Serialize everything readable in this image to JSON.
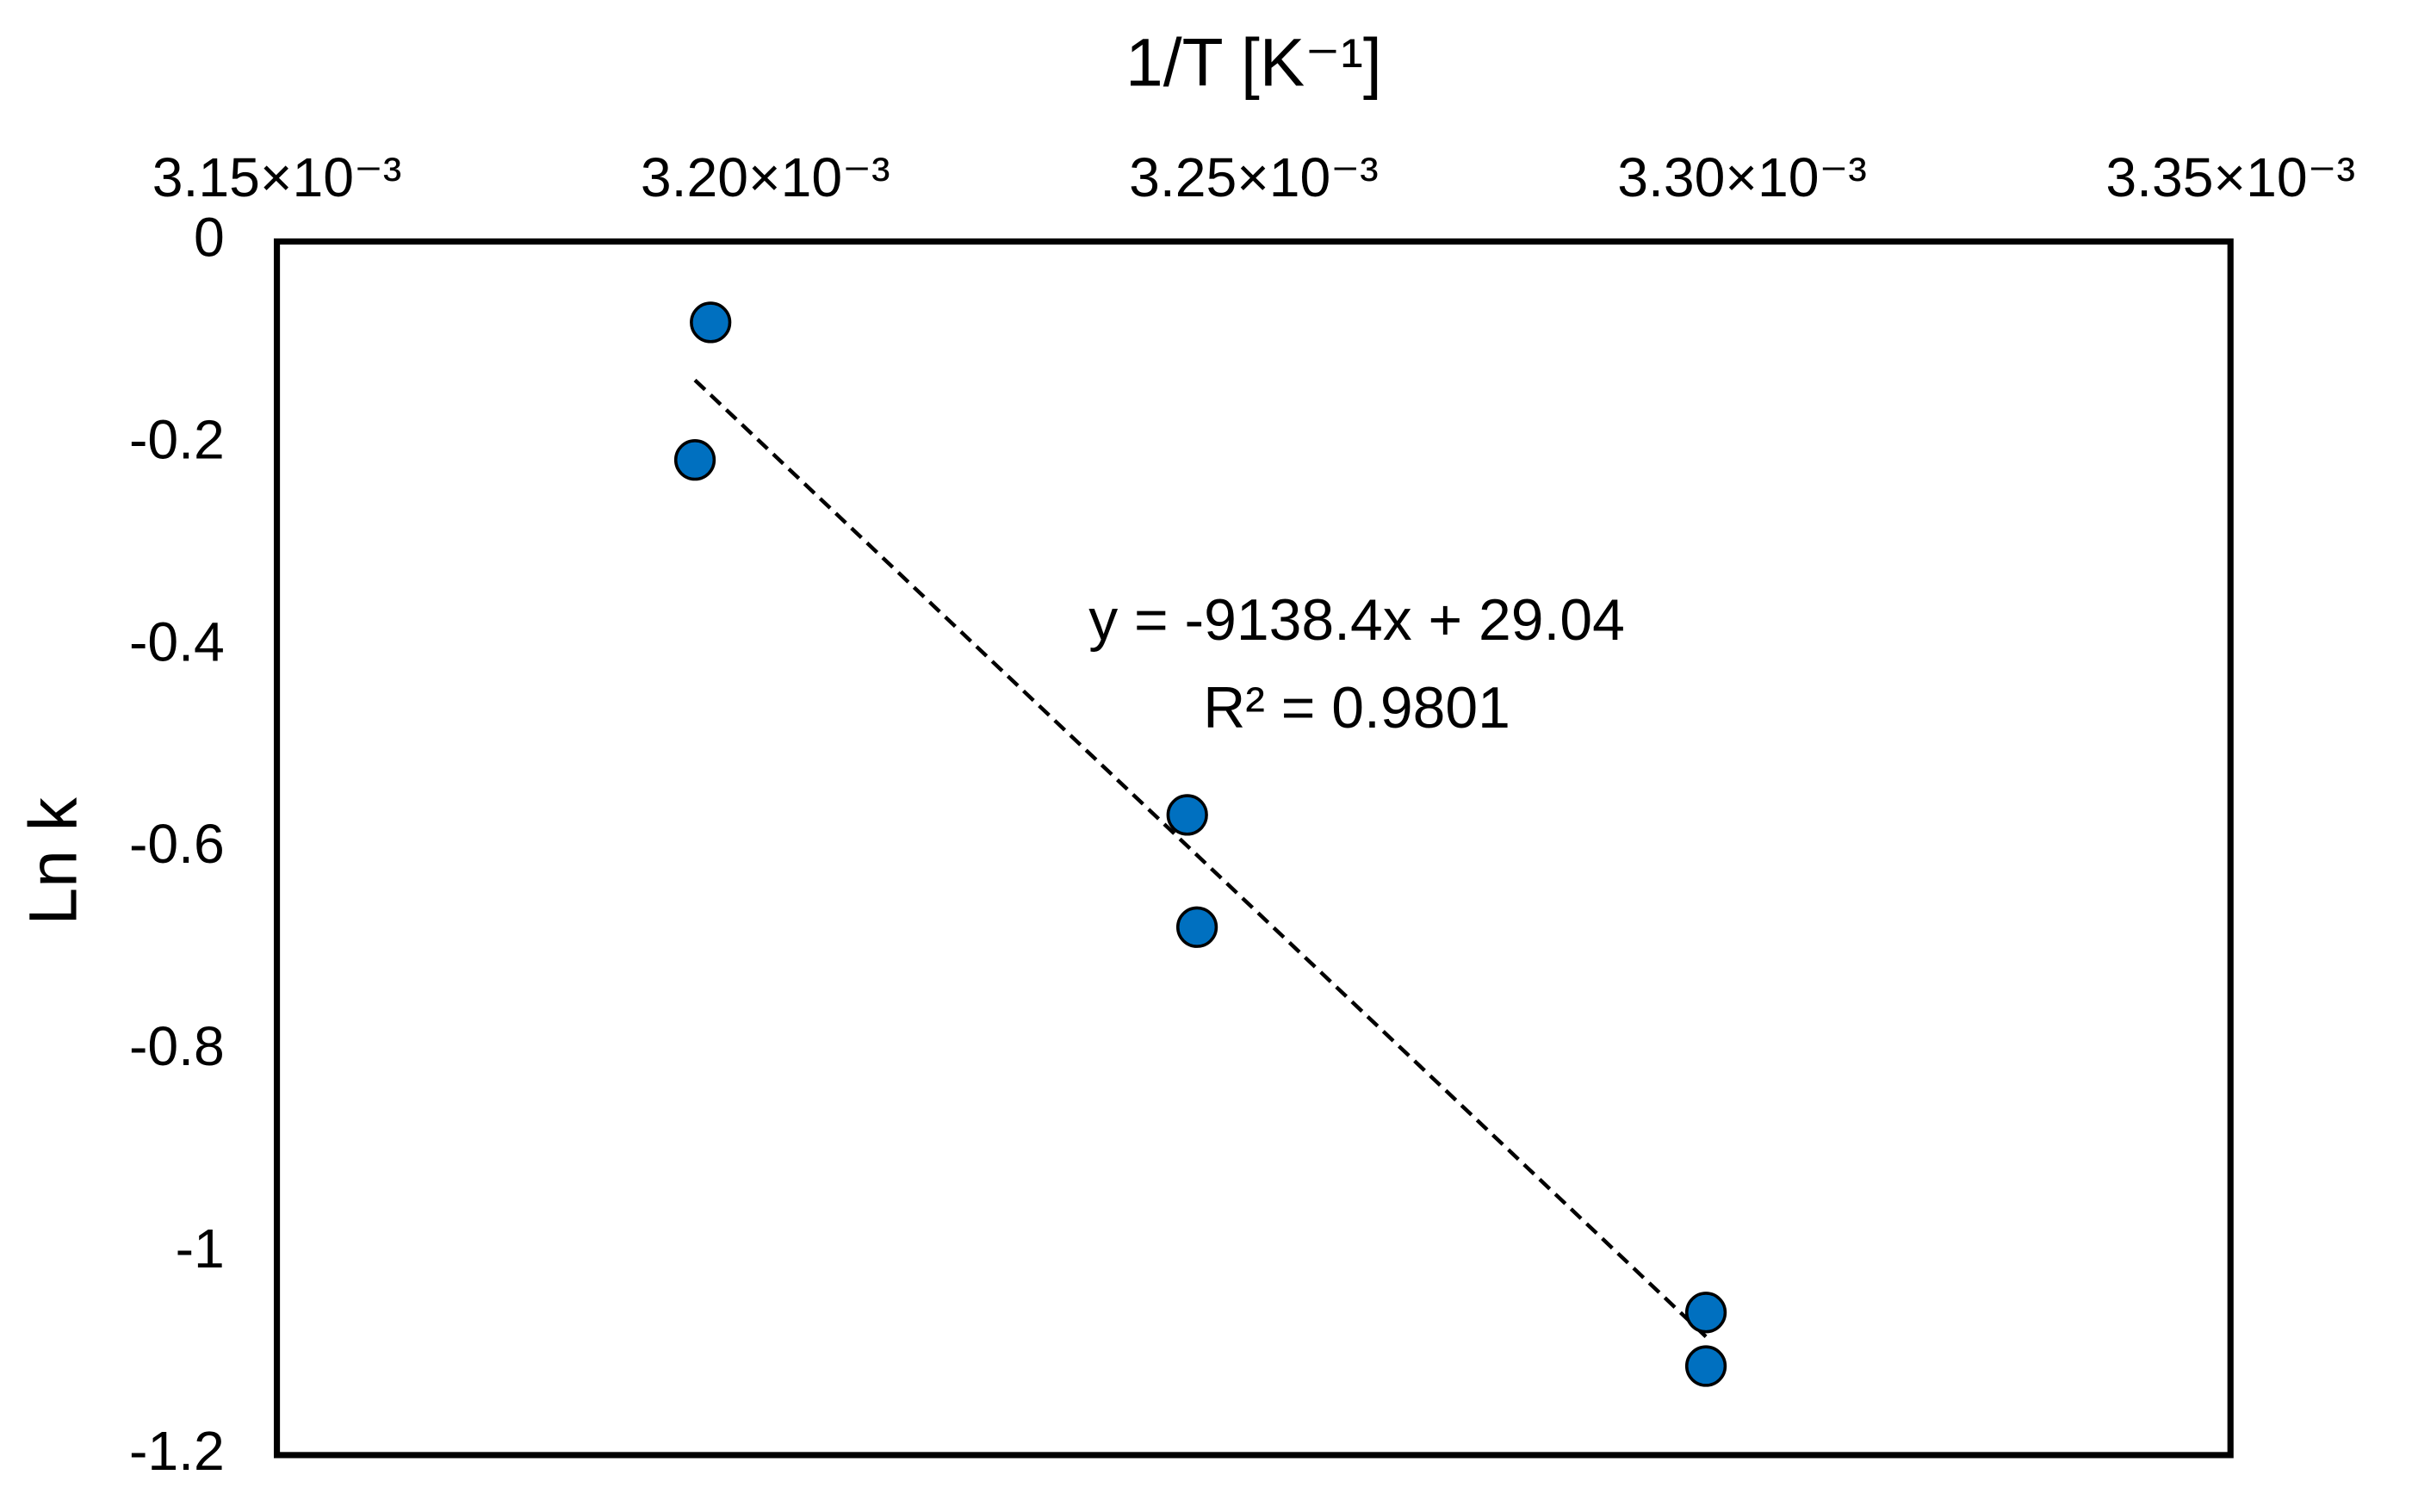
{
  "chart_data": {
    "type": "scatter",
    "x_label": "1/T [K⁻¹]",
    "y_label": "Ln k",
    "x": [
      0.0031944,
      0.0031928,
      0.0032432,
      0.0032442,
      0.0032963,
      0.0032963
    ],
    "series": [
      {
        "name": "Ln k",
        "color": "#0070c0",
        "values": [
          -0.08,
          -0.216,
          -0.567,
          -0.678,
          -1.059,
          -1.112
        ]
      }
    ],
    "xlim": [
      0.00315,
      0.00335
    ],
    "xticks": [
      {
        "value": 0.00315,
        "label": "3.15×10⁻³"
      },
      {
        "value": 0.0032,
        "label": "3.20×10⁻³"
      },
      {
        "value": 0.00325,
        "label": "3.25×10⁻³"
      },
      {
        "value": 0.0033,
        "label": "3.30×10⁻³"
      },
      {
        "value": 0.00335,
        "label": "3.35×10⁻³"
      }
    ],
    "ylim": [
      -1.2,
      0
    ],
    "yticks": [
      0,
      -0.2,
      -0.4,
      -0.6,
      -0.8,
      -1,
      -1.2
    ],
    "x_axis_position": "top",
    "grid": false,
    "trendline": {
      "slope": -9138.4,
      "intercept": 29.04,
      "equation": "y = -9138.4x + 29.04",
      "r_squared": "R² = 0.9801"
    }
  }
}
